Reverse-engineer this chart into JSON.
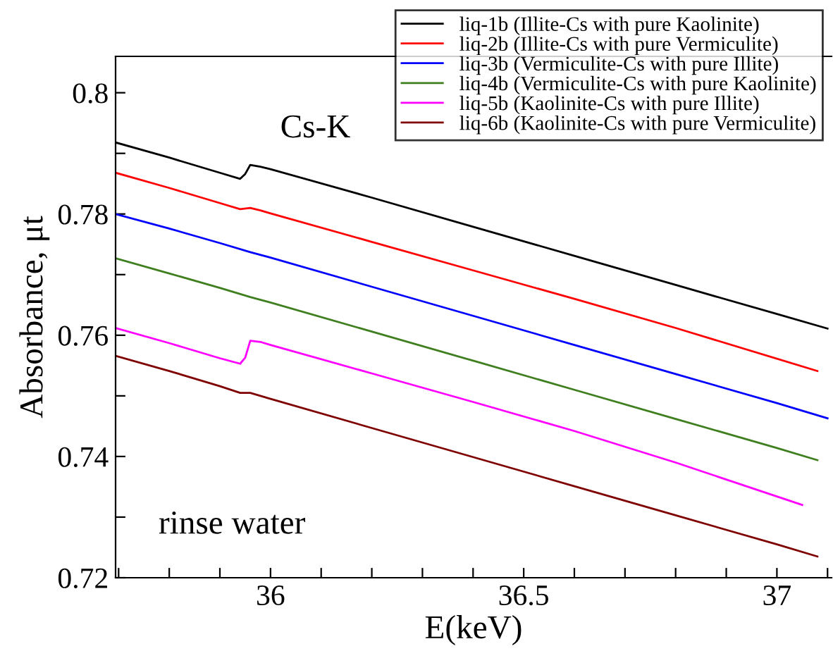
{
  "chart_data": {
    "type": "line",
    "xlabel": "E(keV)",
    "ylabel": "Absorbance, μt",
    "xlim": [
      35.694,
      37.108
    ],
    "ylim": [
      0.72,
      0.806
    ],
    "xticks": [
      {
        "value": 35.7,
        "label": null
      },
      {
        "value": 35.8,
        "label": null
      },
      {
        "value": 35.9,
        "label": null
      },
      36,
      {
        "value": 36.1,
        "label": null
      },
      {
        "value": 36.2,
        "label": null
      },
      {
        "value": 36.3,
        "label": null
      },
      {
        "value": 36.4,
        "label": null
      },
      36.5,
      {
        "value": 36.6,
        "label": null
      },
      {
        "value": 36.7,
        "label": null
      },
      {
        "value": 36.8,
        "label": null
      },
      {
        "value": 36.9,
        "label": null
      },
      37,
      {
        "value": 37.1,
        "label": null
      }
    ],
    "yticks": [
      0.72,
      {
        "value": 0.73,
        "label": null
      },
      0.74,
      {
        "value": 0.75,
        "label": null
      },
      0.76,
      {
        "value": 0.77,
        "label": null
      },
      0.78,
      {
        "value": 0.79,
        "label": null
      },
      0.8
    ],
    "grid": false,
    "legend": "top right",
    "line_style": "solid",
    "marker": "none",
    "annotations": [
      "Cs-K",
      "rinse water"
    ],
    "series": [
      {
        "name": "liq-1b (Illite-Cs with pure Kaolinite)",
        "color": "#000000",
        "x": [
          35.694,
          35.8,
          35.9,
          35.94,
          35.95,
          35.96,
          35.98,
          36.0,
          36.2,
          36.4,
          36.6,
          36.8,
          37.0,
          37.1
        ],
        "values": [
          0.7918,
          0.7893,
          0.7868,
          0.7858,
          0.7866,
          0.7881,
          0.7878,
          0.7874,
          0.7827,
          0.7779,
          0.7731,
          0.7683,
          0.7635,
          0.7611
        ]
      },
      {
        "name": "liq-2b (Illite-Cs with pure Vermiculite)",
        "color": "#ff0000",
        "x": [
          35.694,
          35.8,
          35.9,
          35.94,
          35.96,
          35.98,
          36.0,
          36.2,
          36.4,
          36.6,
          36.8,
          37.08
        ],
        "values": [
          0.7868,
          0.7843,
          0.7818,
          0.7808,
          0.781,
          0.7806,
          0.7801,
          0.7754,
          0.7707,
          0.766,
          0.7612,
          0.7541
        ]
      },
      {
        "name": "liq-3b (Vermiculite-Cs with pure Illite)",
        "color": "#0000ff",
        "x": [
          35.694,
          35.8,
          35.9,
          35.96,
          36.0,
          36.2,
          36.4,
          36.6,
          36.8,
          37.0,
          37.1
        ],
        "values": [
          0.78,
          0.7776,
          0.7752,
          0.7737,
          0.7728,
          0.768,
          0.7632,
          0.7584,
          0.7536,
          0.7488,
          0.7463
        ]
      },
      {
        "name": "liq-4b (Vermiculite-Cs with pure Kaolinite)",
        "color": "#3f7f1f",
        "x": [
          35.694,
          35.8,
          35.9,
          35.96,
          36.0,
          36.2,
          36.4,
          36.6,
          36.8,
          37.0,
          37.08
        ],
        "values": [
          0.7727,
          0.7702,
          0.7678,
          0.7663,
          0.7654,
          0.7606,
          0.7558,
          0.751,
          0.7462,
          0.7414,
          0.7394
        ]
      },
      {
        "name": "liq-5b (Kaolinite-Cs with pure Illite)",
        "color": "#ff00ff",
        "x": [
          35.694,
          35.8,
          35.9,
          35.94,
          35.95,
          35.96,
          35.98,
          36.0,
          36.2,
          36.4,
          36.6,
          36.8,
          37.05
        ],
        "values": [
          0.7612,
          0.7587,
          0.7562,
          0.7553,
          0.7563,
          0.7591,
          0.7589,
          0.7584,
          0.7537,
          0.749,
          0.7442,
          0.739,
          0.732
        ]
      },
      {
        "name": "liq-6b (Kaolinite-Cs with pure Vermiculite)",
        "color": "#7f0000",
        "x": [
          35.694,
          35.8,
          35.9,
          35.94,
          35.96,
          36.0,
          36.2,
          36.4,
          36.6,
          36.8,
          37.0,
          37.08
        ],
        "values": [
          0.7566,
          0.7541,
          0.7516,
          0.7505,
          0.7505,
          0.7495,
          0.7447,
          0.7399,
          0.7351,
          0.7303,
          0.7255,
          0.7235
        ]
      }
    ]
  }
}
